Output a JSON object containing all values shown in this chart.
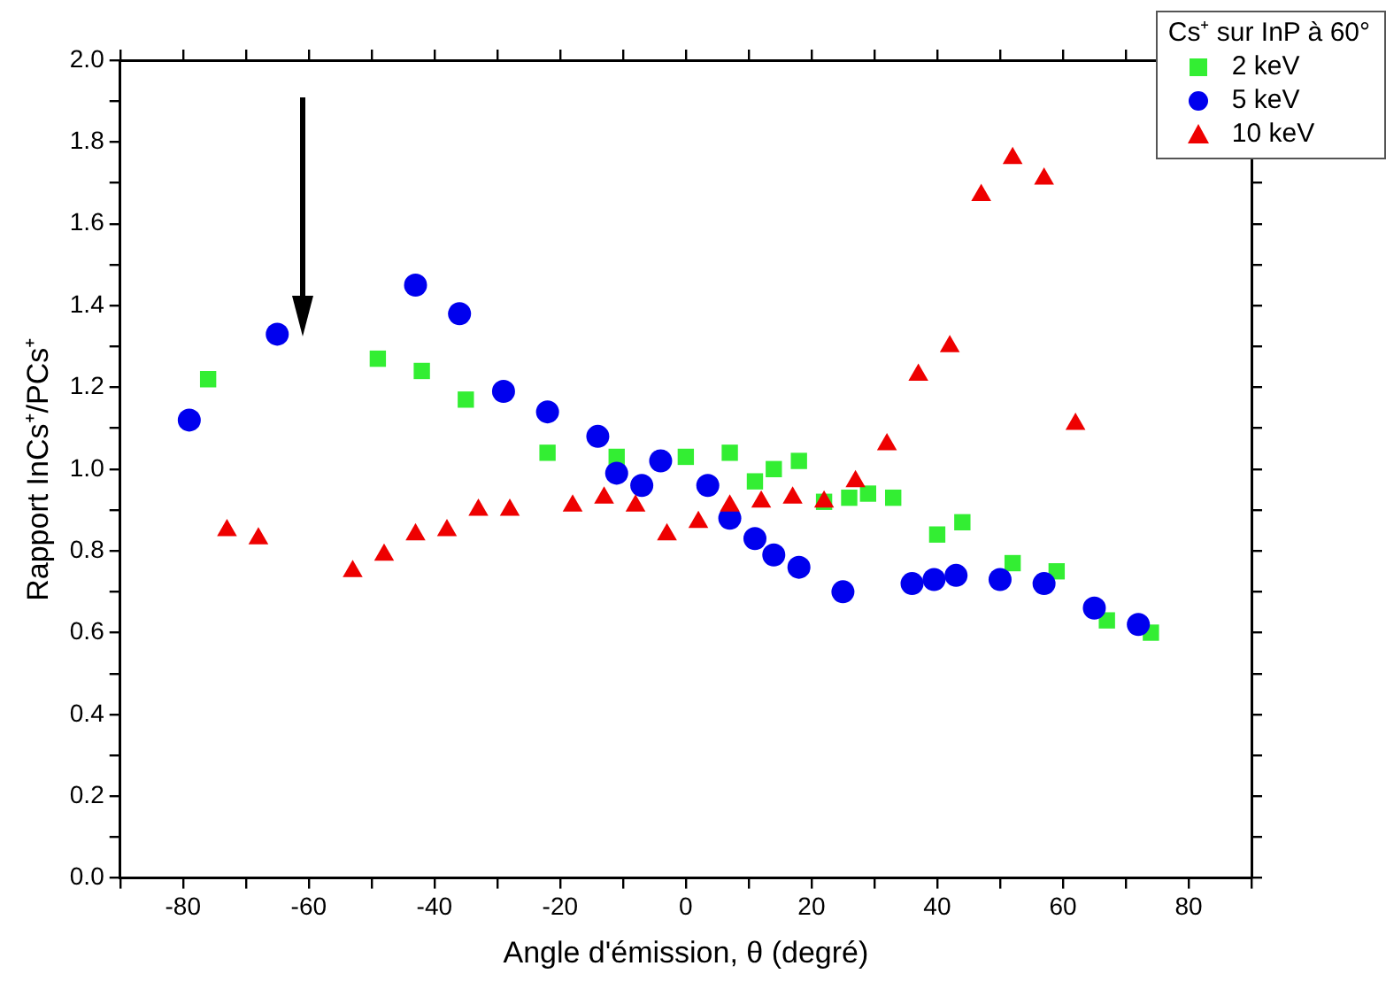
{
  "chart_data": {
    "type": "scatter",
    "xlabel": "Angle d'émission, θ (degré)",
    "ylabel": "Rapport InCs⁺/PCs⁺",
    "legend_title": "Cs⁺ sur InP à 60°",
    "legend": "top right",
    "grid": false,
    "xlim": [
      -90,
      90
    ],
    "xticks": [
      {
        "value": -90,
        "label": null
      },
      -80,
      {
        "value": -70,
        "label": null
      },
      -60,
      {
        "value": -50,
        "label": null
      },
      -40,
      {
        "value": -30,
        "label": null
      },
      -20,
      {
        "value": -10,
        "label": null
      },
      0,
      {
        "value": 10,
        "label": null
      },
      20,
      {
        "value": 30,
        "label": null
      },
      40,
      {
        "value": 50,
        "label": null
      },
      60,
      {
        "value": 70,
        "label": null
      },
      80,
      {
        "value": 90,
        "label": null
      }
    ],
    "ylim": [
      0,
      2
    ],
    "yticks": [
      {
        "value": 0,
        "label": "0.0"
      },
      {
        "value": 0.1,
        "label": null
      },
      {
        "value": 0.2,
        "label": "0.2"
      },
      {
        "value": 0.3,
        "label": null
      },
      {
        "value": 0.4,
        "label": "0.4"
      },
      {
        "value": 0.5,
        "label": null
      },
      {
        "value": 0.6,
        "label": "0.6"
      },
      {
        "value": 0.7,
        "label": null
      },
      {
        "value": 0.8,
        "label": "0.8"
      },
      {
        "value": 0.9,
        "label": null
      },
      {
        "value": 1,
        "label": "1.0"
      },
      {
        "value": 1.1,
        "label": null
      },
      {
        "value": 1.2,
        "label": "1.2"
      },
      {
        "value": 1.3,
        "label": null
      },
      {
        "value": 1.4,
        "label": "1.4"
      },
      {
        "value": 1.5,
        "label": null
      },
      {
        "value": 1.6,
        "label": "1.6"
      },
      {
        "value": 1.7,
        "label": null
      },
      {
        "value": 1.8,
        "label": "1.8"
      },
      {
        "value": 1.9,
        "label": null
      },
      {
        "value": 2,
        "label": "2.0"
      }
    ],
    "series": [
      {
        "name": "2 keV",
        "color": "#33ee33",
        "marker": "square",
        "x": [
          -76,
          -49,
          -42,
          -35,
          -22,
          -11,
          0,
          7,
          11,
          14,
          18,
          22,
          26,
          29,
          33,
          40,
          44,
          52,
          59,
          67,
          74
        ],
        "values": [
          1.22,
          1.27,
          1.24,
          1.17,
          1.04,
          1.03,
          1.03,
          1.04,
          0.97,
          1.0,
          1.02,
          0.92,
          0.93,
          0.94,
          0.93,
          0.84,
          0.87,
          0.77,
          0.75,
          0.63,
          0.6
        ]
      },
      {
        "name": "5 keV",
        "color": "#0000ee",
        "marker": "circle",
        "x": [
          -79,
          -65,
          -43,
          -36,
          -29,
          -22,
          -14,
          -11,
          -7,
          -4,
          3.5,
          7,
          11,
          14,
          18,
          25,
          36,
          39.5,
          43,
          50,
          57,
          65,
          72
        ],
        "values": [
          1.12,
          1.33,
          1.45,
          1.38,
          1.19,
          1.14,
          1.08,
          0.99,
          0.96,
          1.02,
          0.96,
          0.88,
          0.83,
          0.79,
          0.76,
          0.7,
          0.72,
          0.73,
          0.74,
          0.73,
          0.72,
          0.66,
          0.62
        ]
      },
      {
        "name": "10 keV",
        "color": "#ee0000",
        "marker": "triangle",
        "x": [
          -73,
          -68,
          -53,
          -48,
          -43,
          -38,
          -33,
          -28,
          -18,
          -13,
          -8,
          -3,
          2,
          7,
          12,
          17,
          22,
          27,
          32,
          37,
          42,
          47,
          52,
          57,
          62
        ],
        "values": [
          0.85,
          0.83,
          0.75,
          0.79,
          0.84,
          0.85,
          0.9,
          0.9,
          0.91,
          0.93,
          0.91,
          0.84,
          0.87,
          0.91,
          0.92,
          0.93,
          0.92,
          0.97,
          1.06,
          1.23,
          1.3,
          1.67,
          1.76,
          1.71,
          1.11
        ]
      }
    ]
  }
}
